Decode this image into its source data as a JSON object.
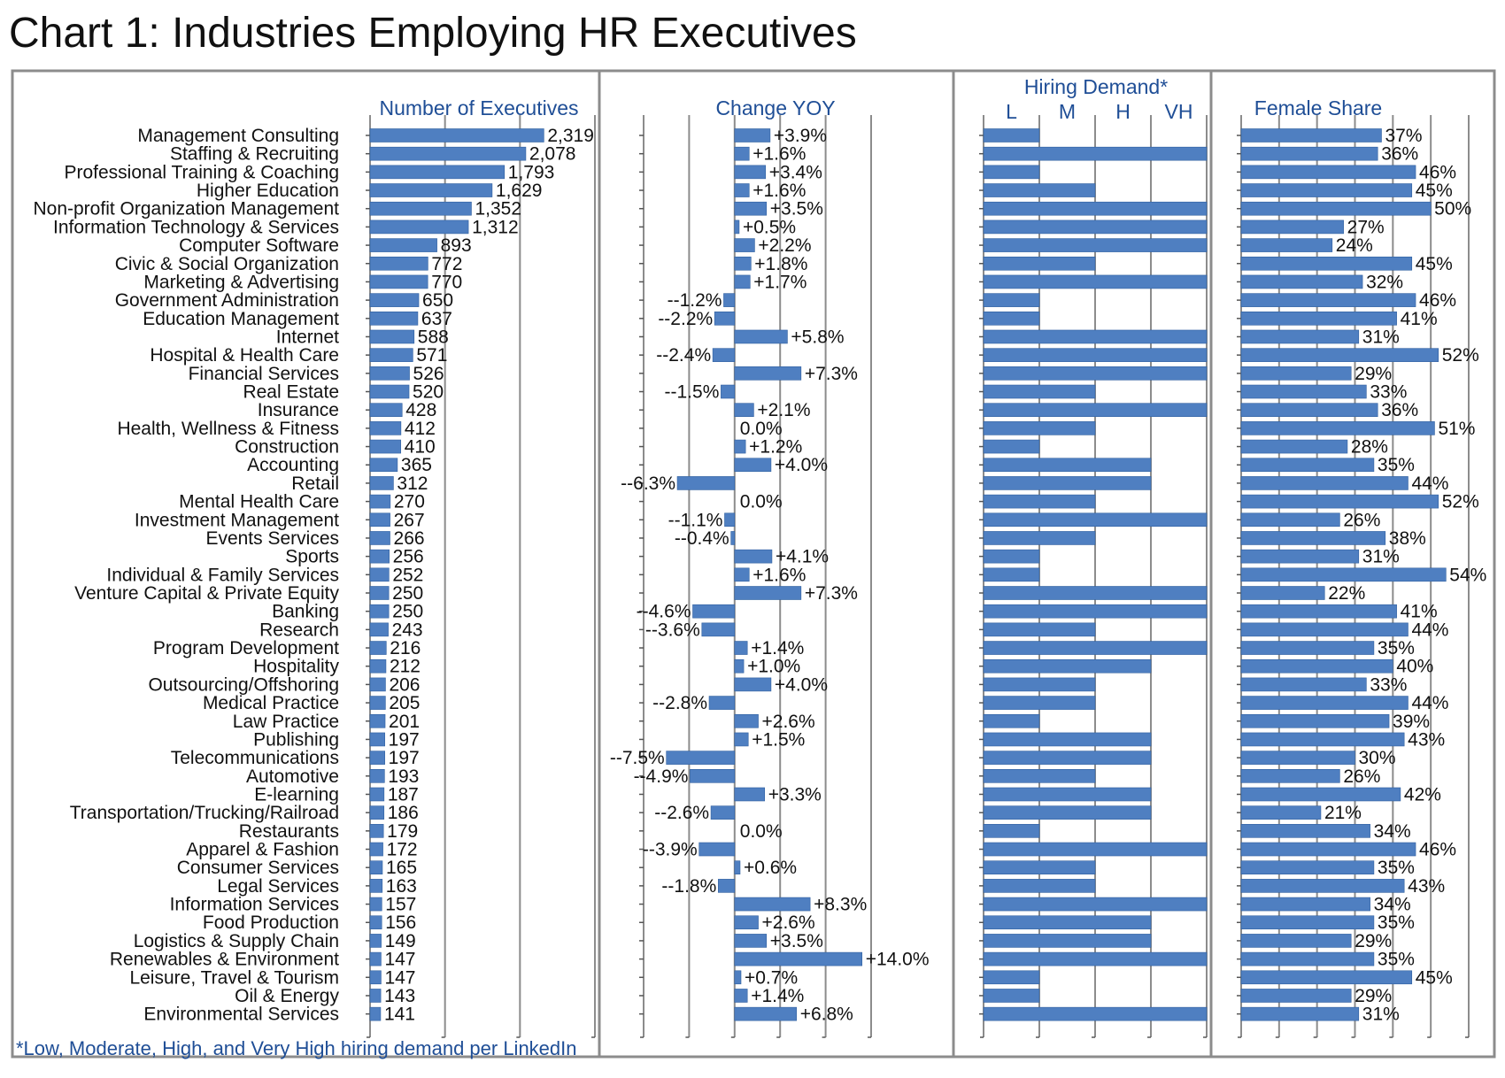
{
  "title": "Chart 1: Industries Employing HR Executives",
  "footnote": "*Low, Moderate, High, and Very High hiring demand per LinkedIn",
  "colors": {
    "bar": "#4f7fc1",
    "panel_border": "#8c8c8c",
    "header": "#1f4e96",
    "text": "#111111"
  },
  "chart_data": [
    {
      "type": "bar",
      "title": "Number of Executives",
      "categories": [
        "Management Consulting",
        "Staffing & Recruiting",
        "Professional Training & Coaching",
        "Higher Education",
        "Non-profit Organization Management",
        "Information Technology & Services",
        "Computer Software",
        "Civic & Social Organization",
        "Marketing & Advertising",
        "Government Administration",
        "Education Management",
        "Internet",
        "Hospital & Health Care",
        "Financial Services",
        "Real Estate",
        "Insurance",
        "Health, Wellness & Fitness",
        "Construction",
        "Accounting",
        "Retail",
        "Mental Health Care",
        "Investment Management",
        "Events Services",
        "Sports",
        "Individual & Family Services",
        "Venture Capital & Private Equity",
        "Banking",
        "Research",
        "Program Development",
        "Hospitality",
        "Outsourcing/Offshoring",
        "Medical Practice",
        "Law Practice",
        "Publishing",
        "Telecommunications",
        "Automotive",
        "E-learning",
        "Transportation/Trucking/Railroad",
        "Restaurants",
        "Apparel & Fashion",
        "Consumer Services",
        "Legal Services",
        "Information Services",
        "Food Production",
        "Logistics & Supply Chain",
        "Renewables & Environment",
        "Leisure, Travel & Tourism",
        "Oil & Energy",
        "Environmental Services"
      ],
      "values": [
        2319,
        2078,
        1793,
        1629,
        1352,
        1312,
        893,
        772,
        770,
        650,
        637,
        588,
        571,
        526,
        520,
        428,
        412,
        410,
        365,
        312,
        270,
        267,
        266,
        256,
        252,
        250,
        250,
        243,
        216,
        212,
        206,
        205,
        201,
        197,
        197,
        193,
        187,
        186,
        179,
        172,
        165,
        163,
        157,
        156,
        149,
        147,
        147,
        143,
        141
      ],
      "labels": [
        "2,319",
        "2,078",
        "1,793",
        "1,629",
        "1,352",
        "1,312",
        "893",
        "772",
        "770",
        "650",
        "637",
        "588",
        "571",
        "526",
        "520",
        "428",
        "412",
        "410",
        "365",
        "312",
        "270",
        "267",
        "266",
        "256",
        "252",
        "250",
        "250",
        "243",
        "216",
        "212",
        "206",
        "205",
        "201",
        "197",
        "197",
        "193",
        "187",
        "186",
        "179",
        "172",
        "165",
        "163",
        "157",
        "156",
        "149",
        "147",
        "147",
        "143",
        "141"
      ],
      "xlim": [
        0,
        3000
      ]
    },
    {
      "type": "bar",
      "title": "Change YOY",
      "values": [
        3.9,
        1.6,
        3.4,
        1.6,
        3.5,
        0.5,
        2.2,
        1.8,
        1.7,
        -1.2,
        -2.2,
        5.8,
        -2.4,
        7.3,
        -1.5,
        2.1,
        0.0,
        1.2,
        4.0,
        -6.3,
        0.0,
        -1.1,
        -0.4,
        4.1,
        1.6,
        7.3,
        -4.6,
        -3.6,
        1.4,
        1.0,
        4.0,
        -2.8,
        2.6,
        1.5,
        -7.5,
        -4.9,
        3.3,
        -2.6,
        0.0,
        -3.9,
        0.6,
        -1.8,
        8.3,
        2.6,
        3.5,
        14.0,
        0.7,
        1.4,
        6.8
      ],
      "labels": [
        "+3.9%",
        "+1.6%",
        "+3.4%",
        "+1.6%",
        "+3.5%",
        "+0.5%",
        "+2.2%",
        "+1.8%",
        "+1.7%",
        "--1.2%",
        "--2.2%",
        "+5.8%",
        "--2.4%",
        "+7.3%",
        "--1.5%",
        "+2.1%",
        "0.0%",
        "+1.2%",
        "+4.0%",
        "--6.3%",
        "0.0%",
        "--1.1%",
        "--0.4%",
        "+4.1%",
        "+1.6%",
        "+7.3%",
        "--4.6%",
        "--3.6%",
        "+1.4%",
        "+1.0%",
        "+4.0%",
        "--2.8%",
        "+2.6%",
        "+1.5%",
        "--7.5%",
        "--4.9%",
        "+3.3%",
        "--2.6%",
        "0.0%",
        "--3.9%",
        "+0.6%",
        "--1.8%",
        "+8.3%",
        "+2.6%",
        "+3.5%",
        "+14.0%",
        "+0.7%",
        "+1.4%",
        "+6.8%"
      ],
      "xlim": [
        -10,
        15
      ]
    },
    {
      "type": "bar",
      "title": "Hiring Demand*",
      "tick_labels": [
        "L",
        "M",
        "H",
        "VH"
      ],
      "levels": [
        "L",
        "VH",
        "L",
        "M",
        "VH",
        "VH",
        "VH",
        "M",
        "VH",
        "L",
        "L",
        "VH",
        "VH",
        "VH",
        "M",
        "VH",
        "M",
        "L",
        "H",
        "H",
        "M",
        "VH",
        "M",
        "L",
        "L",
        "VH",
        "VH",
        "M",
        "VH",
        "H",
        "M",
        "M",
        "L",
        "H",
        "H",
        "M",
        "H",
        "H",
        "L",
        "VH",
        "M",
        "M",
        "VH",
        "H",
        "H",
        "VH",
        "L",
        "L",
        "VH"
      ]
    },
    {
      "type": "bar",
      "title": "Female Share",
      "values": [
        37,
        36,
        46,
        45,
        50,
        27,
        24,
        45,
        32,
        46,
        41,
        31,
        52,
        29,
        33,
        36,
        51,
        28,
        35,
        44,
        52,
        26,
        38,
        31,
        54,
        22,
        41,
        44,
        35,
        40,
        33,
        44,
        39,
        43,
        30,
        26,
        42,
        21,
        34,
        46,
        35,
        43,
        34,
        35,
        29,
        35,
        45,
        29,
        31
      ],
      "labels": [
        "37%",
        "36%",
        "46%",
        "45%",
        "50%",
        "27%",
        "24%",
        "45%",
        "32%",
        "46%",
        "41%",
        "31%",
        "52%",
        "29%",
        "33%",
        "36%",
        "51%",
        "28%",
        "35%",
        "44%",
        "52%",
        "26%",
        "38%",
        "31%",
        "54%",
        "22%",
        "41%",
        "44%",
        "35%",
        "40%",
        "33%",
        "44%",
        "39%",
        "43%",
        "30%",
        "26%",
        "42%",
        "21%",
        "34%",
        "46%",
        "35%",
        "43%",
        "34%",
        "35%",
        "29%",
        "35%",
        "45%",
        "29%",
        "31%"
      ],
      "xlim": [
        0,
        60
      ]
    }
  ]
}
